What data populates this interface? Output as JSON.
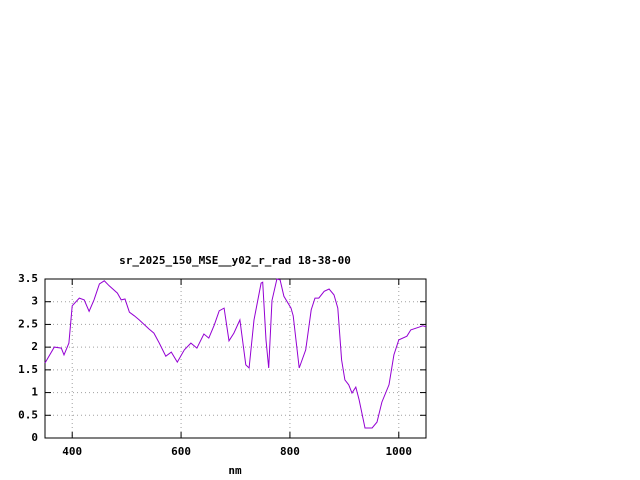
{
  "chart_data": {
    "type": "line",
    "title": "sr_2025_150_MSE__y02_r_rad 18-38-00",
    "x_label": "nm",
    "x": [
      350,
      367,
      380,
      385,
      394,
      400,
      413,
      422,
      431,
      440,
      450,
      459,
      468,
      483,
      490,
      497,
      505,
      514,
      523,
      541,
      550,
      560,
      572,
      582,
      593,
      606,
      618,
      629,
      642,
      651,
      661,
      670,
      679,
      688,
      697,
      708,
      719,
      725,
      734,
      747,
      750,
      756,
      761,
      767,
      776,
      782,
      789,
      802,
      806,
      817,
      829,
      839,
      846,
      853,
      863,
      872,
      881,
      888,
      895,
      901,
      908,
      914,
      921,
      927,
      938,
      951,
      960,
      969,
      982,
      991,
      1000,
      1015,
      1022,
      1037,
      1044,
      1050
    ],
    "series": [
      {
        "color": "#9400d3",
        "values": [
          1.65,
          2.0,
          1.98,
          1.83,
          2.09,
          2.91,
          3.08,
          3.04,
          2.79,
          3.04,
          3.39,
          3.46,
          3.35,
          3.19,
          3.04,
          3.06,
          2.77,
          2.69,
          2.6,
          2.4,
          2.31,
          2.09,
          1.8,
          1.89,
          1.67,
          1.94,
          2.09,
          1.98,
          2.29,
          2.2,
          2.49,
          2.8,
          2.86,
          2.14,
          2.31,
          2.6,
          1.61,
          1.54,
          2.6,
          3.41,
          3.43,
          2.16,
          1.54,
          3.03,
          3.5,
          3.48,
          3.12,
          2.86,
          2.69,
          1.54,
          1.94,
          2.82,
          3.08,
          3.08,
          3.23,
          3.28,
          3.15,
          2.86,
          1.72,
          1.28,
          1.17,
          0.99,
          1.12,
          0.84,
          0.22,
          0.22,
          0.35,
          0.79,
          1.17,
          1.83,
          2.16,
          2.24,
          2.38,
          2.44,
          2.47,
          2.45
        ]
      }
    ],
    "xlim": [
      350,
      1050
    ],
    "xticks": [
      400,
      600,
      800,
      1000
    ],
    "ylim": [
      0,
      3.5
    ],
    "yticks": [
      0,
      0.5,
      1,
      1.5,
      2,
      2.5,
      3,
      3.5
    ],
    "grid": true
  }
}
